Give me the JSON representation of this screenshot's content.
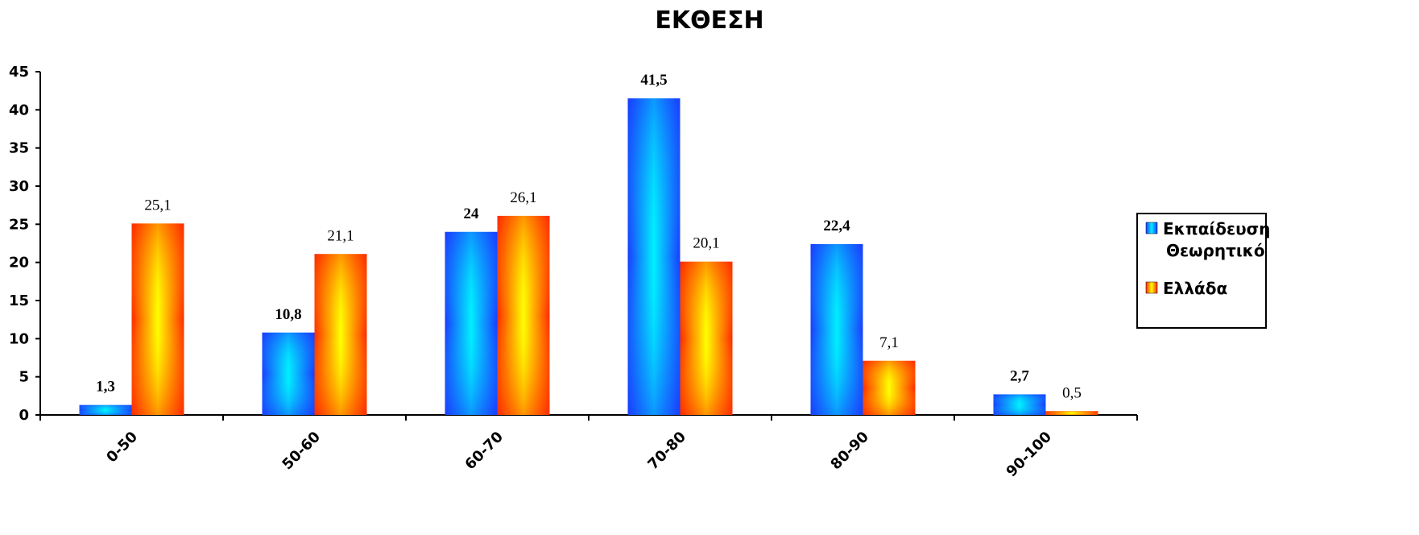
{
  "chart_data": {
    "type": "bar",
    "title": "ΕΚΘΕΣΗ",
    "categories": [
      "0-50",
      "50-60",
      "60-70",
      "70-80",
      "80-90",
      "90-100"
    ],
    "series": [
      {
        "name": "Εκπαίδευση Θεωρητικό",
        "legend_lines": [
          "Εκπαίδευση",
          "Θεωρητικό"
        ],
        "values": [
          1.3,
          10.8,
          24,
          41.5,
          22.4,
          2.7
        ],
        "labels": [
          "1,3",
          "10,8",
          "24",
          "41,5",
          "22,4",
          "2,7"
        ],
        "color_edge": "#1a3cff",
        "color_center": "#00f0ff"
      },
      {
        "name": "Ελλάδα",
        "legend_lines": [
          "Ελλάδα"
        ],
        "values": [
          25.1,
          21.1,
          26.1,
          20.1,
          7.1,
          0.5
        ],
        "labels": [
          "25,1",
          "21,1",
          "26,1",
          "20,1",
          "7,1",
          "0,5"
        ],
        "color_edge": "#ff2a00",
        "color_center": "#ffff00"
      }
    ],
    "ylim": [
      0,
      45
    ],
    "yticks": [
      "0",
      "5",
      "10",
      "15",
      "20",
      "25",
      "30",
      "35",
      "40",
      "45"
    ],
    "grid": false,
    "legend_position": "right"
  }
}
